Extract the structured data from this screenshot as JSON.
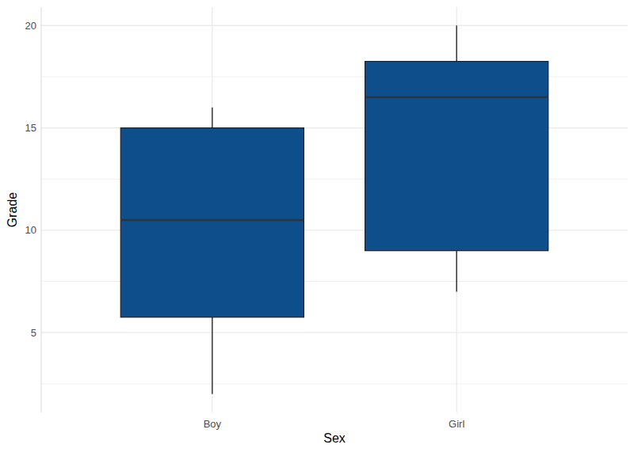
{
  "chart_data": {
    "type": "box",
    "x_label": "Sex",
    "y_label": "Grade",
    "categories": [
      "Boy",
      "Girl"
    ],
    "boxes": [
      {
        "low": 2,
        "q1": 5.75,
        "median": 10.5,
        "q3": 15,
        "high": 16
      },
      {
        "low": 7,
        "q1": 9,
        "median": 16.5,
        "q3": 18.25,
        "high": 20
      }
    ],
    "color": "#0e4f8b",
    "ylim": [
      1.1,
      20.9
    ],
    "yticks": [
      5,
      10,
      15,
      20
    ],
    "grid": true
  }
}
